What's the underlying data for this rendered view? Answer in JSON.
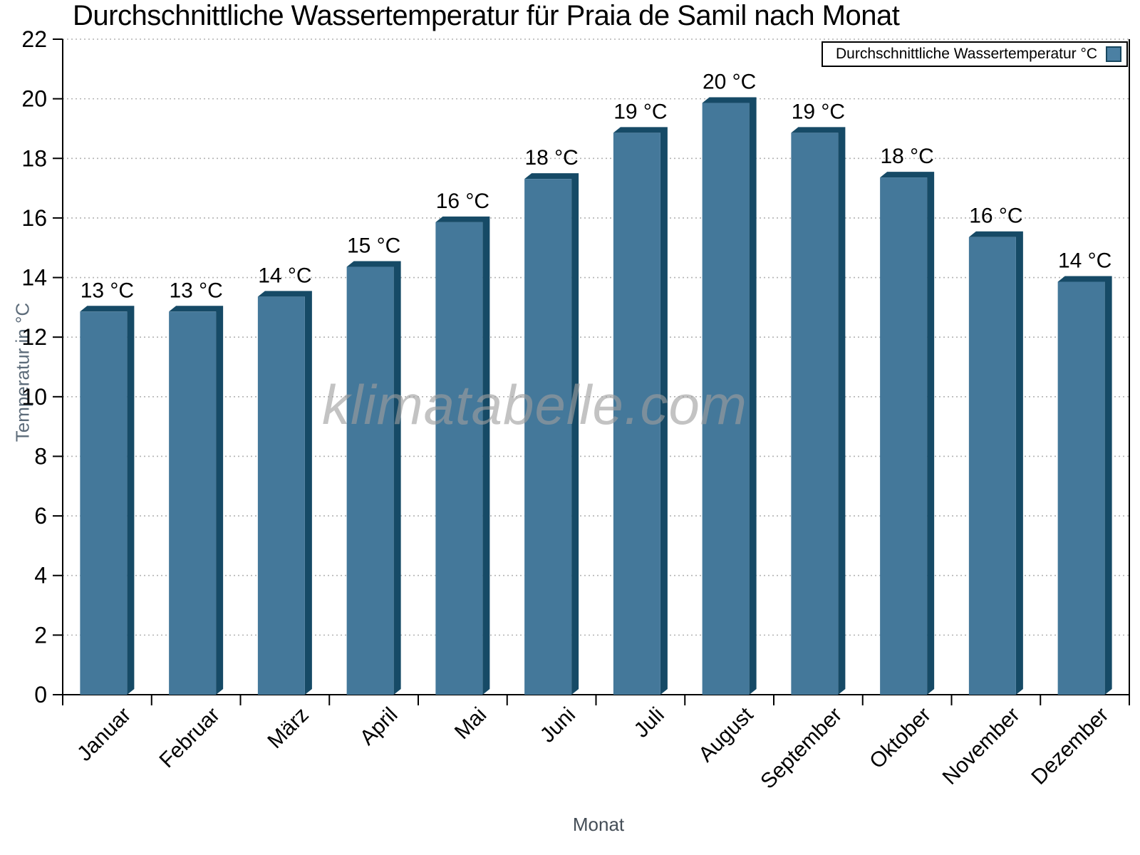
{
  "title": "Durchschnittliche Wassertemperatur für Praia de Samil nach Monat",
  "legend": {
    "label": "Durchschnittliche Wassertemperatur °C"
  },
  "watermark": "klimatabelle.com",
  "colors": {
    "bar_face": "#44789A",
    "bar_shadow": "#164A66",
    "legend_marker_fill": "#4B80A3",
    "legend_marker_border": "#17475F",
    "grid": "#b3b3b3",
    "axis": "#000000",
    "axis_title_y": "#5c6b79",
    "axis_title_x": "#454e57",
    "watermark_gray": "#9e9e9e",
    "label_text": "#000000"
  },
  "chart_data": {
    "type": "bar",
    "title": "Durchschnittliche Wassertemperatur für Praia de Samil nach Monat",
    "xlabel": "Monat",
    "ylabel": "Temperatur in °C",
    "ylim": [
      0,
      22
    ],
    "ytick_step": 2,
    "ytick_labels": [
      "0",
      "2",
      "4",
      "6",
      "8",
      "10",
      "12",
      "14",
      "16",
      "18",
      "20",
      "22"
    ],
    "grid": "horizontal dashed",
    "legend_position": "top-right",
    "categories": [
      "Januar",
      "Februar",
      "März",
      "April",
      "Mai",
      "Juni",
      "Juli",
      "August",
      "September",
      "Oktober",
      "November",
      "Dezember"
    ],
    "series": [
      {
        "name": "Durchschnittliche Wassertemperatur °C",
        "values": [
          13,
          13,
          14,
          15,
          16,
          18,
          19,
          20,
          19,
          18,
          16,
          14
        ],
        "bar_tops_drawn": [
          13.05,
          13.05,
          13.55,
          14.55,
          16.05,
          17.5,
          19.05,
          20.05,
          19.05,
          17.55,
          15.55,
          14.05
        ],
        "point_labels": [
          "13 °C",
          "13 °C",
          "14 °C",
          "15 °C",
          "16 °C",
          "18 °C",
          "19 °C",
          "20 °C",
          "19 °C",
          "18 °C",
          "16 °C",
          "14 °C"
        ]
      }
    ]
  }
}
